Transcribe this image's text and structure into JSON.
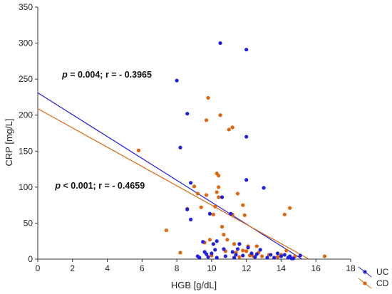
{
  "chart_data": {
    "type": "scatter",
    "title": "",
    "xlabel": "HGB [g/dL]",
    "ylabel": "CRP [mg/L]",
    "xlim": [
      0,
      18
    ],
    "ylim": [
      0,
      350
    ],
    "xticks": [
      "0",
      "2",
      "4",
      "6",
      "8",
      "10",
      "12",
      "14",
      "16",
      "18"
    ],
    "yticks": [
      "0",
      "50",
      "100",
      "150",
      "200",
      "250",
      "300",
      "350"
    ],
    "grid": false,
    "legend_position": "bottom-right",
    "annotations": [
      {
        "id": "uc",
        "p_label": "p",
        "p_rest": " = 0.004; r = - 0.3965",
        "x": 1.4,
        "y": 252
      },
      {
        "id": "cd",
        "p_label": "p",
        "p_rest": " < 0.001; r = - 0.4659",
        "x": 1.0,
        "y": 98
      }
    ],
    "series": [
      {
        "name": "UC",
        "color": "#1f1fe0",
        "fit": {
          "x": [
            0,
            15.2
          ],
          "y": [
            231,
            0
          ]
        },
        "points": [
          [
            8.0,
            248
          ],
          [
            8.2,
            155
          ],
          [
            8.6,
            202
          ],
          [
            8.6,
            69
          ],
          [
            8.8,
            106
          ],
          [
            8.8,
            55
          ],
          [
            9.2,
            4
          ],
          [
            9.3,
            2
          ],
          [
            9.5,
            24
          ],
          [
            9.6,
            10
          ],
          [
            9.7,
            7
          ],
          [
            9.8,
            3
          ],
          [
            9.9,
            63
          ],
          [
            10.0,
            8
          ],
          [
            10.1,
            21
          ],
          [
            10.2,
            13
          ],
          [
            10.3,
            25
          ],
          [
            10.3,
            2
          ],
          [
            10.5,
            300
          ],
          [
            10.6,
            86
          ],
          [
            10.7,
            14
          ],
          [
            10.8,
            4
          ],
          [
            11.1,
            63
          ],
          [
            11.2,
            10
          ],
          [
            11.3,
            2
          ],
          [
            11.4,
            6
          ],
          [
            11.5,
            14
          ],
          [
            11.6,
            21
          ],
          [
            11.8,
            5
          ],
          [
            12.0,
            291
          ],
          [
            12.0,
            170
          ],
          [
            12.0,
            110
          ],
          [
            12.1,
            16
          ],
          [
            12.3,
            8
          ],
          [
            12.5,
            3
          ],
          [
            12.6,
            7
          ],
          [
            12.8,
            13
          ],
          [
            13.0,
            99
          ],
          [
            13.2,
            2
          ],
          [
            13.4,
            6
          ],
          [
            13.6,
            2
          ],
          [
            13.8,
            8
          ],
          [
            14.0,
            4
          ],
          [
            14.2,
            6
          ],
          [
            14.4,
            2
          ],
          [
            14.5,
            4
          ],
          [
            14.6,
            1
          ],
          [
            14.7,
            1
          ],
          [
            15.1,
            5
          ]
        ]
      },
      {
        "name": "CD",
        "color": "#e0640a",
        "fit": {
          "x": [
            0,
            15.6
          ],
          "y": [
            209,
            0
          ]
        },
        "points": [
          [
            5.8,
            151
          ],
          [
            7.4,
            40
          ],
          [
            8.2,
            9
          ],
          [
            8.6,
            70
          ],
          [
            9.0,
            101
          ],
          [
            9.2,
            91
          ],
          [
            9.4,
            72
          ],
          [
            9.6,
            23
          ],
          [
            9.7,
            89
          ],
          [
            9.7,
            193
          ],
          [
            9.8,
            224
          ],
          [
            9.9,
            27
          ],
          [
            10.0,
            5
          ],
          [
            10.1,
            62
          ],
          [
            10.2,
            73
          ],
          [
            10.3,
            93
          ],
          [
            10.3,
            119
          ],
          [
            10.4,
            116
          ],
          [
            10.4,
            100
          ],
          [
            10.4,
            86
          ],
          [
            10.5,
            200
          ],
          [
            10.6,
            45
          ],
          [
            10.7,
            34
          ],
          [
            10.8,
            11
          ],
          [
            10.9,
            27
          ],
          [
            11.0,
            180
          ],
          [
            11.2,
            183
          ],
          [
            11.2,
            62
          ],
          [
            11.3,
            21
          ],
          [
            11.4,
            9
          ],
          [
            11.5,
            91
          ],
          [
            11.6,
            3
          ],
          [
            11.8,
            75
          ],
          [
            11.8,
            12
          ],
          [
            11.9,
            61
          ],
          [
            12.0,
            11
          ],
          [
            12.1,
            18
          ],
          [
            12.2,
            5
          ],
          [
            12.4,
            4
          ],
          [
            12.6,
            18
          ],
          [
            12.7,
            9
          ],
          [
            12.9,
            4
          ],
          [
            13.3,
            6
          ],
          [
            13.6,
            2
          ],
          [
            13.8,
            3
          ],
          [
            14.0,
            6
          ],
          [
            14.2,
            62
          ],
          [
            14.3,
            12
          ],
          [
            14.5,
            71
          ],
          [
            14.8,
            4
          ],
          [
            16.5,
            4
          ]
        ]
      }
    ]
  }
}
